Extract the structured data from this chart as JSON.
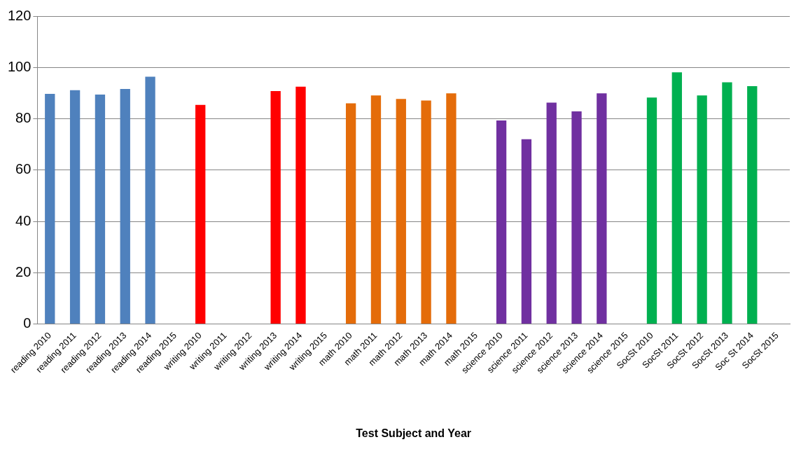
{
  "chart_data": {
    "type": "bar",
    "xlabel": "Test Subject and Year",
    "categories": [
      "reading 2010",
      "reading 2011",
      "reading 2012",
      "reading 2013",
      "reading 2014",
      "reading 2015",
      "writing 2010",
      "writing 2011",
      "writing 2012",
      "writing 2013",
      "writing 2014",
      "writing 2015",
      "math 2010",
      "math 2011",
      "math 2012",
      "math 2013",
      "math 2014",
      "math 2015",
      "science 2010",
      "science 2011",
      "science 2012",
      "science 2013",
      "science 2014",
      "science 2015",
      "SocSt 2010",
      "SocSt 2011",
      "SocSt 2012",
      "SocSt 2013",
      "Soc St 2014",
      "SocSt 2015"
    ],
    "values": [
      89.7,
      91.1,
      89.4,
      91.6,
      96.4,
      null,
      85.4,
      null,
      null,
      90.8,
      92.5,
      null,
      86,
      89.1,
      87.7,
      87.1,
      89.9,
      null,
      79.3,
      72,
      86.3,
      82.9,
      89.9,
      null,
      88.3,
      98.1,
      89.1,
      94.2,
      92.7,
      null
    ],
    "colors": [
      "#4f81bd",
      "#4f81bd",
      "#4f81bd",
      "#4f81bd",
      "#4f81bd",
      "#4f81bd",
      "#ff0000",
      "#ff0000",
      "#ff0000",
      "#ff0000",
      "#ff0000",
      "#ff0000",
      "#e46c0a",
      "#e46c0a",
      "#e46c0a",
      "#e46c0a",
      "#e46c0a",
      "#e46c0a",
      "#7030a0",
      "#7030a0",
      "#7030a0",
      "#7030a0",
      "#7030a0",
      "#7030a0",
      "#00b050",
      "#00b050",
      "#00b050",
      "#00b050",
      "#00b050",
      "#00b050"
    ],
    "ylim": [
      0,
      120
    ],
    "yticks": [
      0,
      20,
      40,
      60,
      80,
      100,
      120
    ],
    "grid": "y",
    "legend": false
  }
}
